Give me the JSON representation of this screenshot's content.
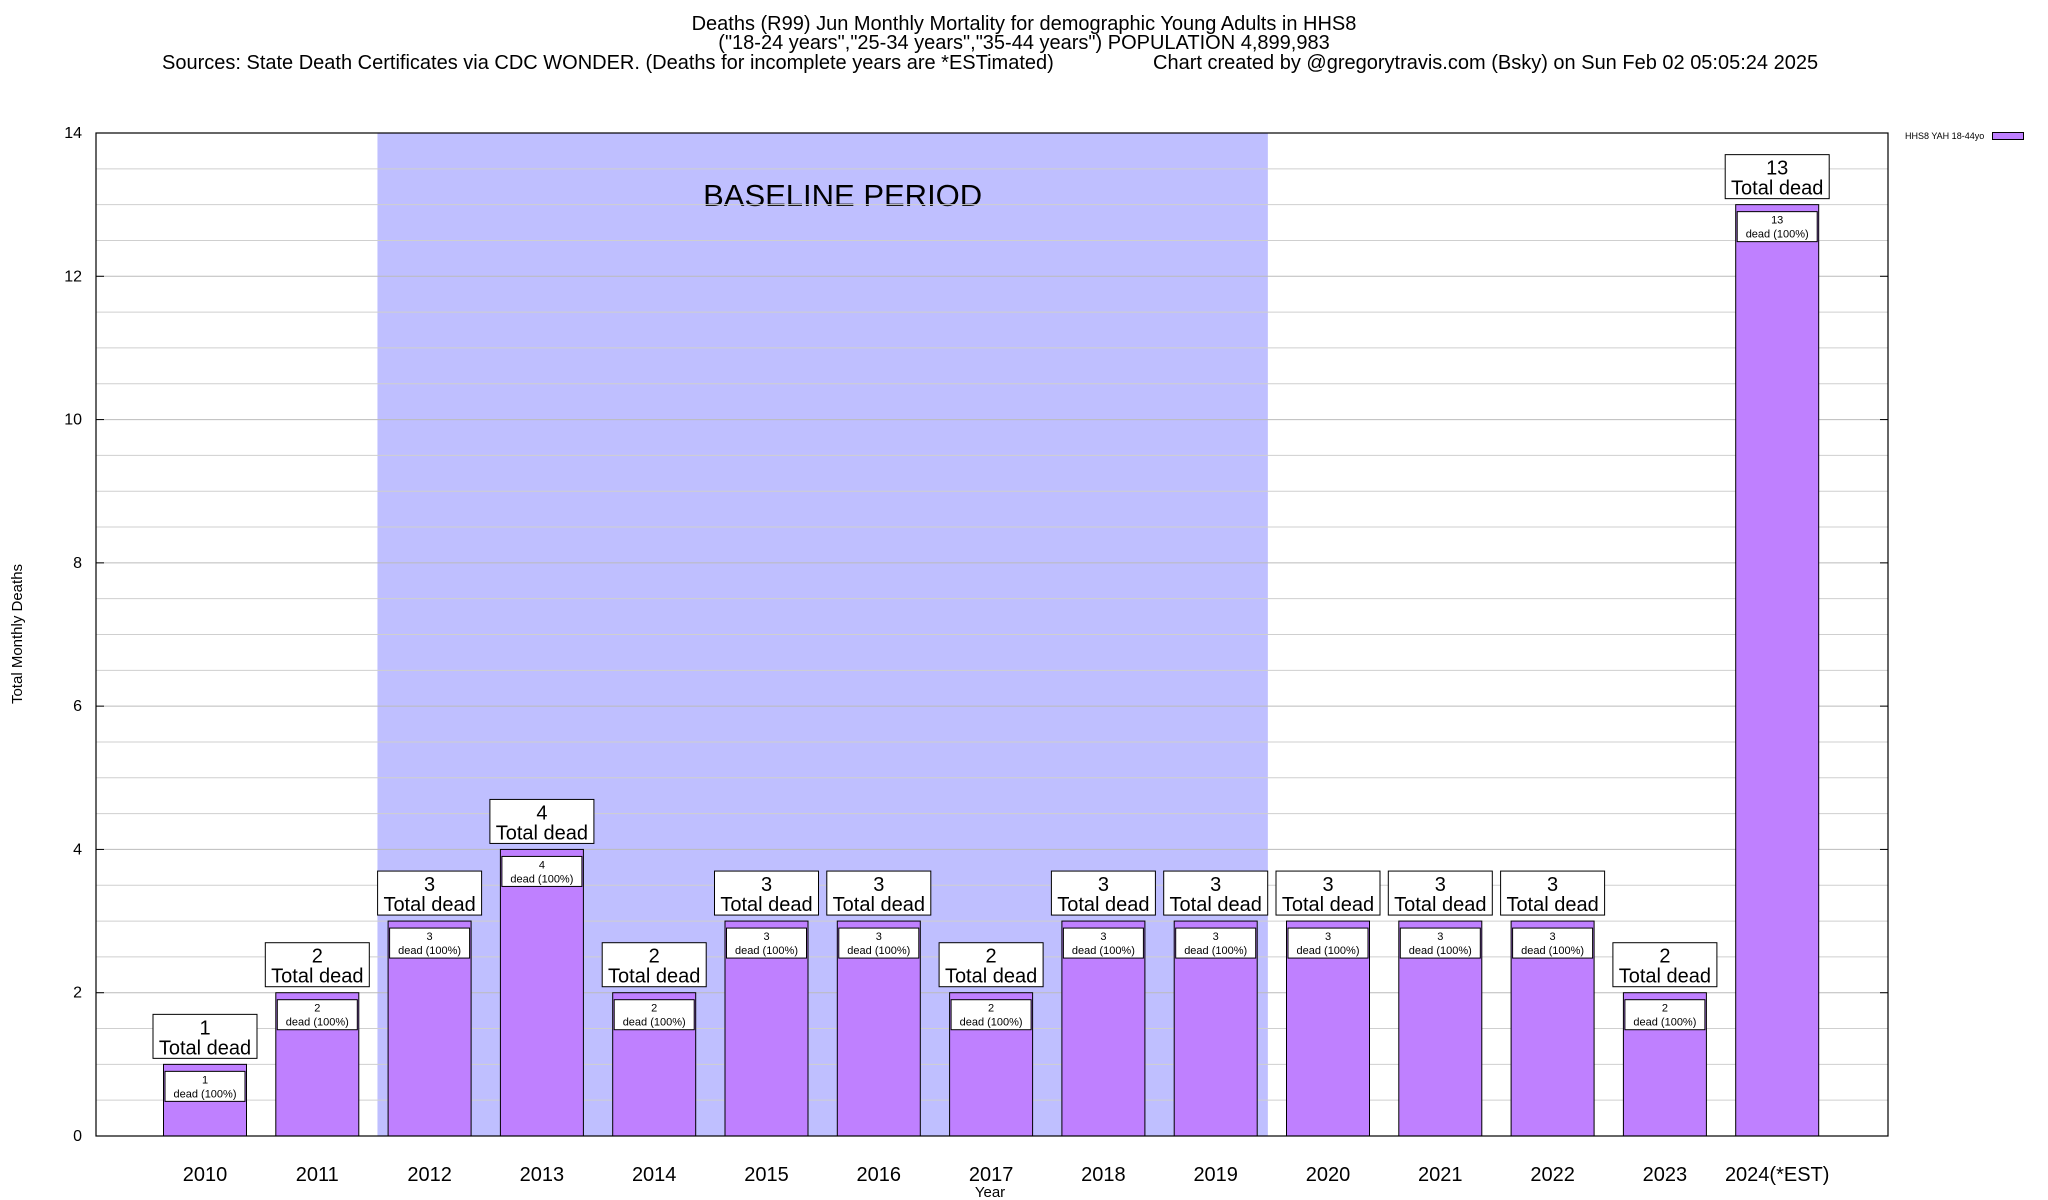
{
  "chart_data": {
    "type": "bar",
    "title": "Deaths (R99) Jun Monthly Mortality for demographic Young Adults in HHS8",
    "subtitle": "(\"18-24 years\",\"25-34 years\",\"35-44 years\") POPULATION 4,899,983",
    "sources": "Sources: State Death Certificates via CDC WONDER. (Deaths for incomplete years are *ESTimated)",
    "credit": "Chart created by @gregorytravis.com (Bsky) on Sun Feb 02 05:05:24 2025",
    "xlabel": "Year",
    "ylabel": "Total Monthly Deaths",
    "ylim": [
      0,
      14
    ],
    "yticks": [
      "0",
      "2",
      "4",
      "6",
      "8",
      "10",
      "12",
      "14"
    ],
    "categories": [
      "2010",
      "2011",
      "2012",
      "2013",
      "2014",
      "2015",
      "2016",
      "2017",
      "2018",
      "2019",
      "2020",
      "2021",
      "2022",
      "2023",
      "2024(*EST)"
    ],
    "series": [
      {
        "name": "HHS8 YAH 18-44yo",
        "color": "#bf80ff",
        "values": [
          1,
          2,
          3,
          4,
          2,
          3,
          3,
          2,
          3,
          3,
          3,
          3,
          3,
          2,
          13
        ]
      }
    ],
    "total_labels": [
      "1",
      "2",
      "3",
      "4",
      "2",
      "3",
      "3",
      "2",
      "3",
      "3",
      "3",
      "3",
      "3",
      "2",
      "13"
    ],
    "total_label_suffix": "Total dead",
    "inner_labels": [
      "1",
      "2",
      "3",
      "4",
      "2",
      "3",
      "3",
      "2",
      "3",
      "3",
      "3",
      "3",
      "3",
      "2",
      "13"
    ],
    "inner_label_suffix": "dead (100%)",
    "baseline": {
      "label": "BASELINE PERIOD",
      "from": "2012",
      "to": "2019",
      "color": "#bfbfff"
    },
    "grid": true,
    "legend_position": "top-right"
  }
}
